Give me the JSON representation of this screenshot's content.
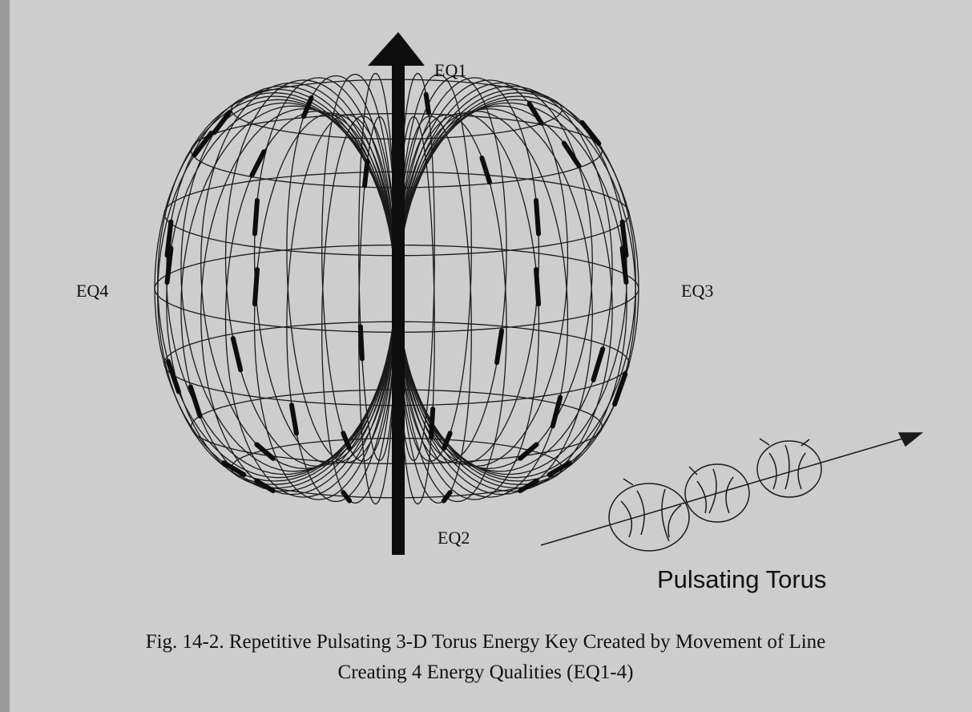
{
  "figure": {
    "labels": {
      "eq1": "EQ1",
      "eq2": "EQ2",
      "eq3": "EQ3",
      "eq4": "EQ4"
    },
    "inset_title": "Pulsating Torus",
    "caption": [
      "Fig. 14-2. Repetitive Pulsating 3-D Torus Energy Key Created by Movement of Line",
      "Creating 4 Energy Qualities (EQ1-4)"
    ]
  }
}
